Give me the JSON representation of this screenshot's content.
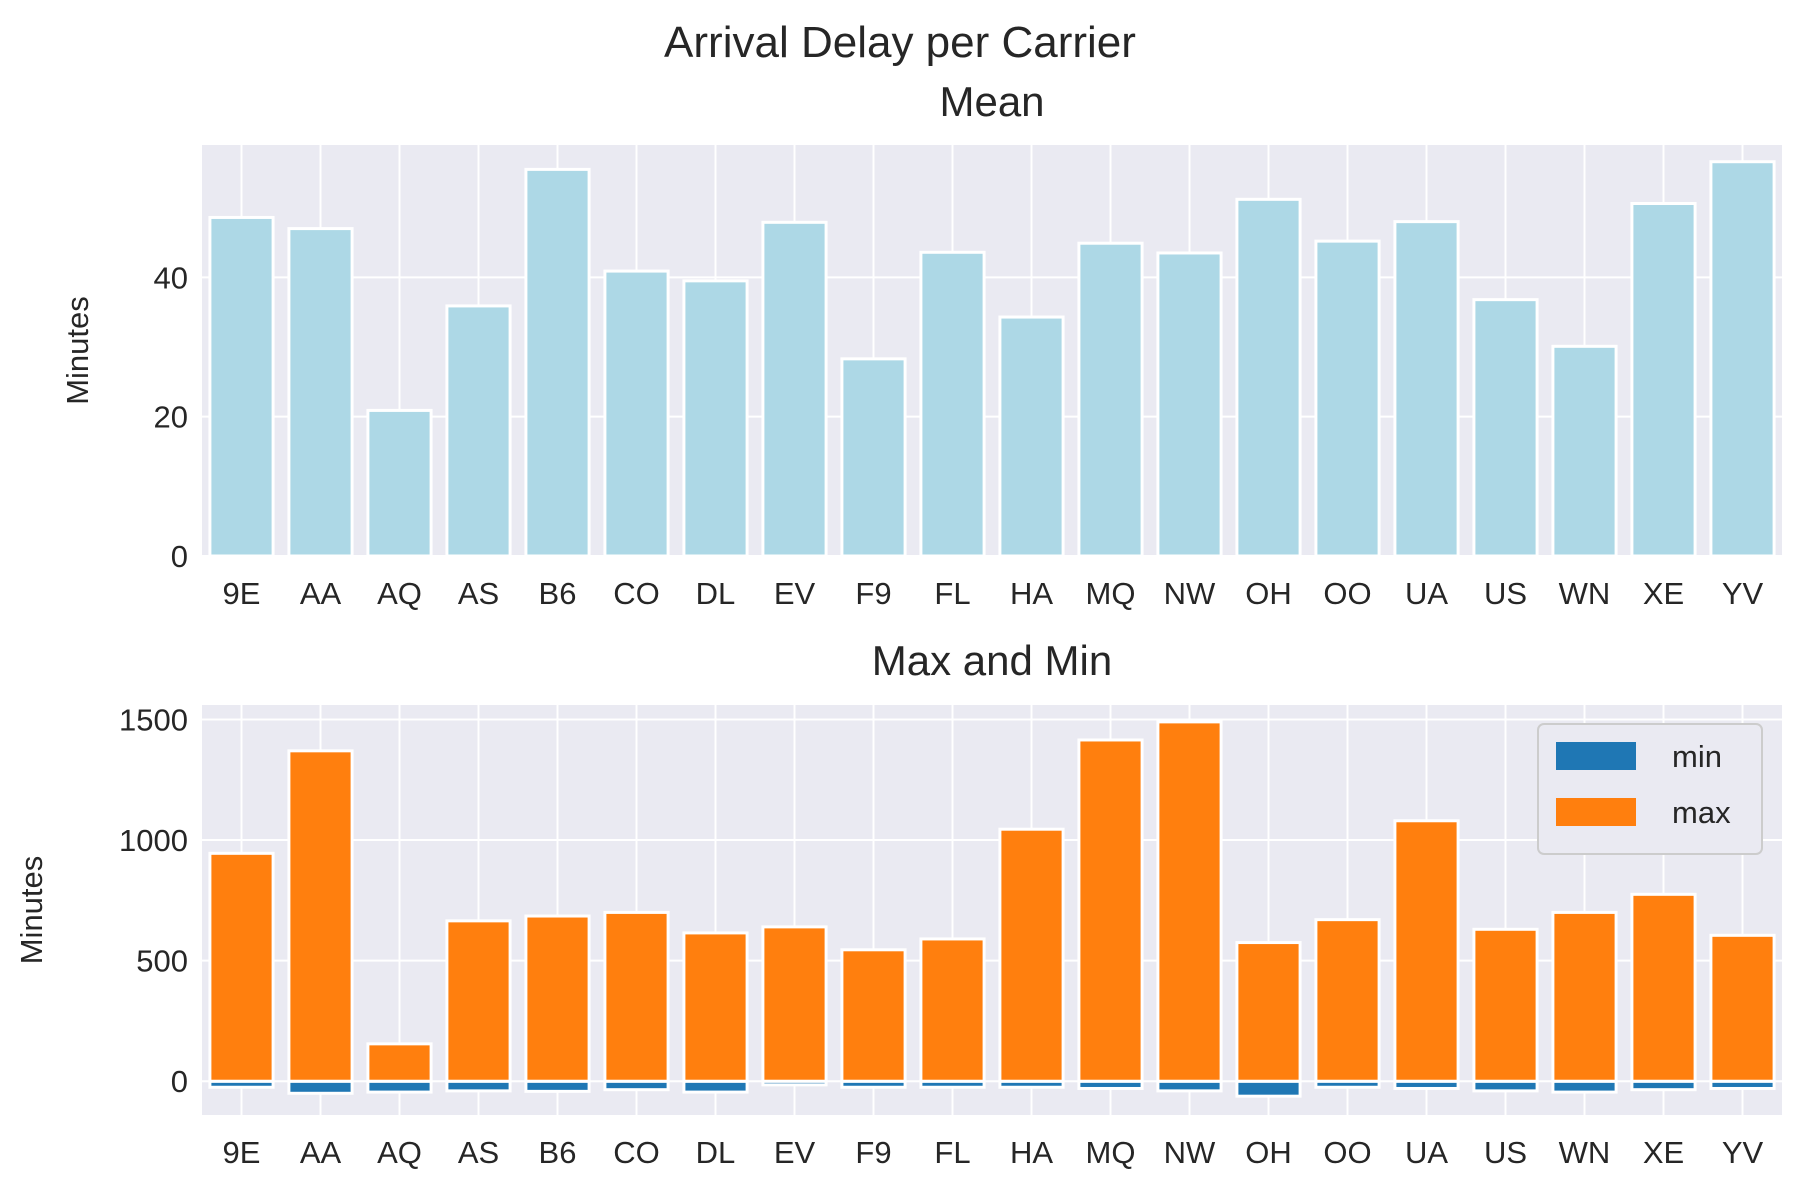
{
  "figure": {
    "suptitle": "Arrival Delay per Carrier"
  },
  "chart_data": [
    {
      "type": "bar",
      "title": "Mean",
      "xlabel": "",
      "ylabel": "Minutes",
      "categories": [
        "9E",
        "AA",
        "AQ",
        "AS",
        "B6",
        "CO",
        "DL",
        "EV",
        "F9",
        "FL",
        "HA",
        "MQ",
        "NW",
        "OH",
        "OO",
        "UA",
        "US",
        "WN",
        "XE",
        "YV"
      ],
      "values": [
        48.6,
        47.0,
        20.9,
        35.9,
        55.5,
        40.9,
        39.5,
        47.9,
        28.3,
        43.6,
        34.3,
        44.9,
        43.5,
        51.2,
        45.2,
        48.0,
        36.8,
        30.1,
        50.6,
        56.6
      ],
      "ylim": [
        0,
        59
      ],
      "yticks": [
        0,
        20,
        40
      ],
      "bar_color": "#add8e6",
      "background": "#eaeaf2",
      "grid": true
    },
    {
      "type": "bar",
      "title": "Max and Min",
      "xlabel": "",
      "ylabel": "Minutes",
      "categories": [
        "9E",
        "AA",
        "AQ",
        "AS",
        "B6",
        "CO",
        "DL",
        "EV",
        "F9",
        "FL",
        "HA",
        "MQ",
        "NW",
        "OH",
        "OO",
        "UA",
        "US",
        "WN",
        "XE",
        "YV"
      ],
      "series": [
        {
          "name": "min",
          "color": "#1f77b4",
          "values": [
            -25,
            -50,
            -45,
            -40,
            -42,
            -35,
            -45,
            -15,
            -25,
            -25,
            -25,
            -30,
            -40,
            -62,
            -25,
            -30,
            -40,
            -45,
            -35,
            -30
          ]
        },
        {
          "name": "max",
          "color": "#ff7f0e",
          "values": [
            945,
            1370,
            155,
            665,
            685,
            700,
            615,
            640,
            545,
            590,
            1045,
            1415,
            1490,
            575,
            670,
            1080,
            630,
            700,
            775,
            605
          ]
        }
      ],
      "ylim": [
        -140,
        1560
      ],
      "yticks": [
        0,
        500,
        1000,
        1500
      ],
      "legend": "top-right",
      "background": "#eaeaf2",
      "grid": true
    }
  ]
}
